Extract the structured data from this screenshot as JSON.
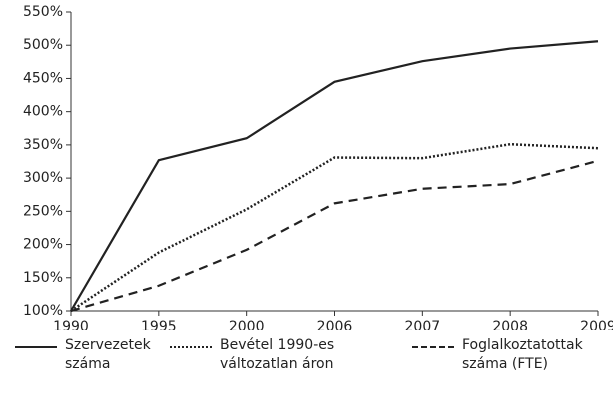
{
  "chart_data": {
    "type": "line",
    "categories": [
      "1990",
      "1995",
      "2000",
      "2006",
      "2007",
      "2008",
      "2009"
    ],
    "series": [
      {
        "name": "Szervezetek száma",
        "color": "#222222",
        "dash": "solid",
        "values": [
          100,
          327,
          360,
          445,
          476,
          495,
          506
        ]
      },
      {
        "name": "Bevétel 1990-es változatlan áron",
        "color": "#222222",
        "dash": "dotted",
        "values": [
          100,
          188,
          253,
          331,
          330,
          351,
          345
        ]
      },
      {
        "name": "Foglalkoztatottak száma (FTE)",
        "color": "#222222",
        "dash": "dashed",
        "values": [
          100,
          138,
          192,
          262,
          284,
          291,
          326
        ]
      }
    ],
    "ylim": [
      100,
      550
    ],
    "yticks": [
      {
        "value": 100,
        "label": "100%"
      },
      {
        "value": 150,
        "label": "150%"
      },
      {
        "value": 200,
        "label": "200%"
      },
      {
        "value": 250,
        "label": "250%"
      },
      {
        "value": 300,
        "label": "300%"
      },
      {
        "value": 350,
        "label": "350%"
      },
      {
        "value": 400,
        "label": "400%"
      },
      {
        "value": 450,
        "label": "450%"
      },
      {
        "value": 500,
        "label": "500%"
      },
      {
        "value": 550,
        "label": "550%"
      }
    ],
    "grid": false,
    "legend": "bottom"
  }
}
